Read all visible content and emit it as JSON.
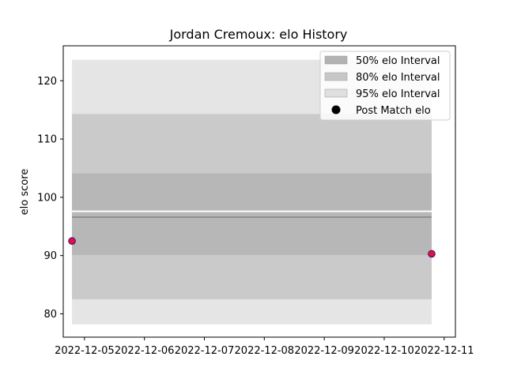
{
  "chart_data": {
    "type": "scatter",
    "title": "Jordan Cremoux: elo History",
    "xlabel": "",
    "ylabel": "elo score",
    "xlim": [
      "2022-12-04 15:30",
      "2022-12-11 04:30"
    ],
    "ylim": [
      76,
      126
    ],
    "x_ticks": [
      "2022-12-05",
      "2022-12-06",
      "2022-12-07",
      "2022-12-08",
      "2022-12-09",
      "2022-12-10",
      "2022-12-11"
    ],
    "y_ticks": [
      80,
      90,
      100,
      110,
      120
    ],
    "legend_position": "upper right",
    "grid": false,
    "intervals": [
      {
        "name": "95% elo Interval",
        "x_start": "2022-12-04 19:00",
        "x_end": "2022-12-10 19:00",
        "lower": 78.2,
        "upper": 123.6,
        "color": "#d3d3d3",
        "opacity": 0.6
      },
      {
        "name": "80% elo Interval",
        "x_start": "2022-12-04 19:00",
        "x_end": "2022-12-10 19:00",
        "lower": 82.5,
        "upper": 114.3,
        "color": "#b0b0b0",
        "opacity": 0.5
      },
      {
        "name": "50% elo Interval",
        "x_start": "2022-12-04 19:00",
        "x_end": "2022-12-10 19:00",
        "lower": 90.1,
        "upper": 104.1,
        "color": "#a0a0a0",
        "opacity": 0.45
      }
    ],
    "mean_line": {
      "x_start": "2022-12-04 19:00",
      "x_end": "2022-12-10 19:00",
      "value": 96.6,
      "color": "#909090"
    },
    "white_line": {
      "x_start": "2022-12-04 19:00",
      "x_end": "2022-12-10 19:00",
      "value": 97.6
    },
    "series": [
      {
        "name": "Post Match elo",
        "x": [
          "2022-12-04 19:00",
          "2022-12-10 19:00"
        ],
        "y": [
          92.5,
          90.3
        ],
        "fill": "#dc143c",
        "edge": "#4b0082"
      }
    ],
    "legend_entries": [
      {
        "label": "50% elo Interval",
        "kind": "patch",
        "color": "#a0a0a0",
        "opacity": 0.8
      },
      {
        "label": "80% elo Interval",
        "kind": "patch",
        "color": "#b0b0b0",
        "opacity": 0.7
      },
      {
        "label": "95% elo Interval",
        "kind": "patch",
        "color": "#d3d3d3",
        "opacity": 0.7
      },
      {
        "label": "Post Match elo",
        "kind": "marker",
        "color": "#000000"
      }
    ]
  }
}
